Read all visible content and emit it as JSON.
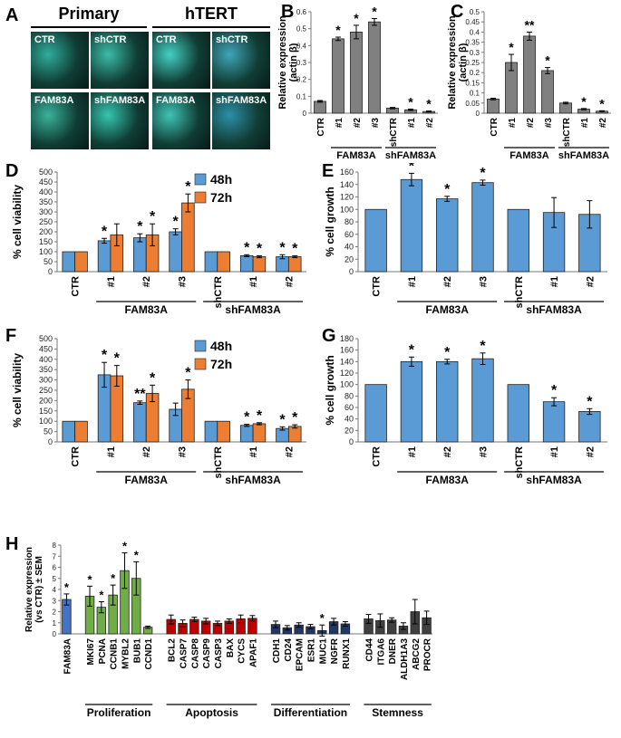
{
  "panel_letters": {
    "a": "A",
    "b": "B",
    "c": "C",
    "d": "D",
    "e": "E",
    "f": "F",
    "g": "G",
    "h": "H"
  },
  "micrographs": {
    "col_headers": [
      "Primary",
      "hTERT"
    ],
    "images": [
      {
        "label": "CTR",
        "color": "#2fae9c"
      },
      {
        "label": "shCTR",
        "color": "#3cbca8"
      },
      {
        "label": "CTR",
        "color": "#44d0c4"
      },
      {
        "label": "shCTR",
        "color": "#3fa6b8"
      },
      {
        "label": "FAM83A",
        "color": "#39b39a"
      },
      {
        "label": "shFAM83A",
        "color": "#35c6b0"
      },
      {
        "label": "FAM83A",
        "color": "#3fc4b6"
      },
      {
        "label": "shFAM83A",
        "color": "#2d8fa8"
      }
    ]
  },
  "chart_data": [
    {
      "id": "B",
      "type": "bar",
      "ylabel": "Relative expression\n(actin β)",
      "ylim": [
        0,
        0.6
      ],
      "yticks": [
        0,
        0.1,
        0.2,
        0.3,
        0.4,
        0.5,
        0.6
      ],
      "categories": [
        "CTR",
        "#1",
        "#2",
        "#3",
        "shCTR",
        "#1",
        "#2"
      ],
      "values": [
        0.07,
        0.44,
        0.48,
        0.54,
        0.03,
        0.02,
        0.01
      ],
      "errors": [
        0.005,
        0.01,
        0.04,
        0.02,
        0.004,
        0.004,
        0.003
      ],
      "sig": [
        "",
        "*",
        "*",
        "*",
        "",
        "*",
        "*"
      ],
      "groups": [
        {
          "label": "FAM83A",
          "from": 1,
          "to": 3
        },
        {
          "label": "shFAM83A",
          "from": 4,
          "to": 6
        }
      ],
      "color": "#808080"
    },
    {
      "id": "C",
      "type": "bar",
      "ylabel": "Relative expression\n(actin β)",
      "ylim": [
        0,
        0.5
      ],
      "yticks": [
        0,
        0.05,
        0.1,
        0.15,
        0.2,
        0.25,
        0.3,
        0.35,
        0.4,
        0.45,
        0.5
      ],
      "categories": [
        "CTR",
        "#1",
        "#2",
        "#3",
        "shCTR",
        "#1",
        "#2"
      ],
      "values": [
        0.07,
        0.25,
        0.38,
        0.21,
        0.05,
        0.02,
        0.01
      ],
      "errors": [
        0.004,
        0.04,
        0.02,
        0.015,
        0.004,
        0.003,
        0.002
      ],
      "sig": [
        "",
        "*",
        "**",
        "*",
        "",
        "*",
        "*"
      ],
      "groups": [
        {
          "label": "FAM83A",
          "from": 1,
          "to": 3
        },
        {
          "label": "shFAM83A",
          "from": 4,
          "to": 6
        }
      ],
      "color": "#808080"
    },
    {
      "id": "D",
      "type": "bar",
      "ylabel": "% cell viability",
      "ylim": [
        0,
        500
      ],
      "yticks": [
        0,
        50,
        100,
        150,
        200,
        250,
        300,
        350,
        400,
        450,
        500
      ],
      "categories": [
        "CTR",
        "#1",
        "#2",
        "#3",
        "shCTR",
        "#1",
        "#2"
      ],
      "series": [
        {
          "name": "48h",
          "color": "#5b9bd5",
          "values": [
            100,
            155,
            170,
            200,
            100,
            80,
            75
          ],
          "errors": [
            0,
            12,
            20,
            15,
            0,
            5,
            10
          ],
          "sig": [
            "",
            "*",
            "*",
            "*",
            "",
            "*",
            "*"
          ]
        },
        {
          "name": "72h",
          "color": "#ed7d31",
          "values": [
            100,
            185,
            185,
            345,
            100,
            75,
            75
          ],
          "errors": [
            0,
            55,
            55,
            45,
            0,
            5,
            5
          ],
          "sig": [
            "",
            "",
            "*",
            "*",
            "",
            "*",
            "*"
          ]
        }
      ],
      "groups": [
        {
          "label": "FAM83A",
          "from": 1,
          "to": 3
        },
        {
          "label": "shFAM83A",
          "from": 4,
          "to": 6
        }
      ]
    },
    {
      "id": "E",
      "type": "bar",
      "ylabel": "% cell growth",
      "ylim": [
        0,
        160
      ],
      "yticks": [
        0,
        20,
        40,
        60,
        80,
        100,
        120,
        140,
        160
      ],
      "categories": [
        "CTR",
        "#1",
        "#2",
        "#3",
        "shCTR",
        "#1",
        "#2"
      ],
      "values": [
        100,
        148,
        117,
        143,
        100,
        95,
        92
      ],
      "errors": [
        0,
        10,
        4,
        4,
        0,
        24,
        22
      ],
      "sig": [
        "",
        "*",
        "*",
        "*",
        "",
        "",
        ""
      ],
      "groups": [
        {
          "label": "FAM83A",
          "from": 1,
          "to": 3
        },
        {
          "label": "shFAM83A",
          "from": 4,
          "to": 6
        }
      ],
      "color": "#5b9bd5"
    },
    {
      "id": "F",
      "type": "bar",
      "ylabel": "% cell viability",
      "ylim": [
        0,
        500
      ],
      "yticks": [
        0,
        50,
        100,
        150,
        200,
        250,
        300,
        350,
        400,
        450,
        500
      ],
      "categories": [
        "CTR",
        "#1",
        "#2",
        "#3",
        "shCTR",
        "#1",
        "#2"
      ],
      "series": [
        {
          "name": "48h",
          "color": "#5b9bd5",
          "values": [
            100,
            325,
            190,
            158,
            100,
            80,
            65
          ],
          "errors": [
            0,
            60,
            8,
            30,
            0,
            5,
            8
          ],
          "sig": [
            "",
            "*",
            "**",
            "",
            "",
            "*",
            "*"
          ]
        },
        {
          "name": "72h",
          "color": "#ed7d31",
          "values": [
            100,
            320,
            235,
            255,
            100,
            88,
            75
          ],
          "errors": [
            0,
            50,
            40,
            45,
            0,
            5,
            8
          ],
          "sig": [
            "",
            "*",
            "*",
            "*",
            "",
            "*",
            "*"
          ]
        }
      ],
      "groups": [
        {
          "label": "FAM83A",
          "from": 1,
          "to": 3
        },
        {
          "label": "shFAM83A",
          "from": 4,
          "to": 6
        }
      ]
    },
    {
      "id": "G",
      "type": "bar",
      "ylabel": "% cell growth",
      "ylim": [
        0,
        180
      ],
      "yticks": [
        0,
        20,
        40,
        60,
        80,
        100,
        120,
        140,
        160,
        180
      ],
      "categories": [
        "CTR",
        "#1",
        "#2",
        "#3",
        "shCTR",
        "#1",
        "#2"
      ],
      "values": [
        100,
        140,
        140,
        145,
        100,
        70,
        53
      ],
      "errors": [
        0,
        8,
        4,
        10,
        0,
        7,
        5
      ],
      "sig": [
        "",
        "*",
        "*",
        "*",
        "",
        "*",
        "*"
      ],
      "groups": [
        {
          "label": "FAM83A",
          "from": 1,
          "to": 3
        },
        {
          "label": "shFAM83A",
          "from": 4,
          "to": 6
        }
      ],
      "color": "#5b9bd5"
    },
    {
      "id": "H",
      "type": "bar",
      "ylabel": "Relative expression\n(vs CTR) ± SEM",
      "ylim": [
        0,
        8
      ],
      "yticks": [
        0,
        1,
        2,
        3,
        4,
        5,
        6,
        7,
        8
      ],
      "categories": [
        "FAM83A",
        "",
        "MKI67",
        "PCNA",
        "CCNB1",
        "MYBL2",
        "BUB1",
        "CCND1",
        "",
        "BCL2",
        "CASP7",
        "CASP8",
        "CASP9",
        "CASP3",
        "BAX",
        "CYCS",
        "APAF1",
        "",
        "CDH1",
        "CD24",
        "EPCAM",
        "ESR1",
        "MUC1",
        "NGFR",
        "RUNX1",
        "",
        "CD44",
        "ITGA6",
        "DNER",
        "ALDH1A3",
        "ABCG2",
        "PROCR"
      ],
      "values": [
        3.1,
        null,
        3.4,
        2.4,
        3.5,
        5.7,
        5.0,
        0.6,
        null,
        1.3,
        0.95,
        1.3,
        1.15,
        0.95,
        1.15,
        1.35,
        1.4,
        null,
        0.85,
        0.55,
        0.8,
        0.65,
        0.3,
        1.1,
        0.9,
        null,
        1.35,
        1.2,
        1.25,
        0.7,
        2.0,
        1.45
      ],
      "errors": [
        0.5,
        null,
        0.9,
        0.5,
        0.9,
        1.6,
        1.5,
        0.1,
        null,
        0.4,
        0.3,
        0.2,
        0.25,
        0.2,
        0.2,
        0.35,
        0.25,
        null,
        0.3,
        0.2,
        0.2,
        0.2,
        0.5,
        0.3,
        0.2,
        null,
        0.4,
        0.6,
        0.2,
        0.3,
        1.1,
        0.6
      ],
      "sig": [
        "*",
        "",
        "*",
        "*",
        "*",
        "*",
        "*",
        "",
        "",
        "",
        "",
        "",
        "",
        "",
        "",
        "",
        "",
        "",
        "",
        "",
        "",
        "",
        "*",
        "",
        "",
        "",
        "",
        "",
        "",
        "",
        "",
        ""
      ],
      "colors": [
        "#4472c4",
        "",
        "#70ad47",
        "#70ad47",
        "#70ad47",
        "#70ad47",
        "#70ad47",
        "#70ad47",
        "",
        "#c00000",
        "#c00000",
        "#c00000",
        "#c00000",
        "#c00000",
        "#c00000",
        "#c00000",
        "#c00000",
        "",
        "#1f3864",
        "#1f3864",
        "#1f3864",
        "#1f3864",
        "#1f3864",
        "#1f3864",
        "#1f3864",
        "",
        "#404040",
        "#404040",
        "#404040",
        "#404040",
        "#404040",
        "#404040"
      ],
      "groups": [
        {
          "label": "Proliferation",
          "from": 2,
          "to": 7
        },
        {
          "label": "Apoptosis",
          "from": 9,
          "to": 16
        },
        {
          "label": "Differentiation",
          "from": 18,
          "to": 24
        },
        {
          "label": "Stemness",
          "from": 26,
          "to": 31
        }
      ]
    }
  ]
}
